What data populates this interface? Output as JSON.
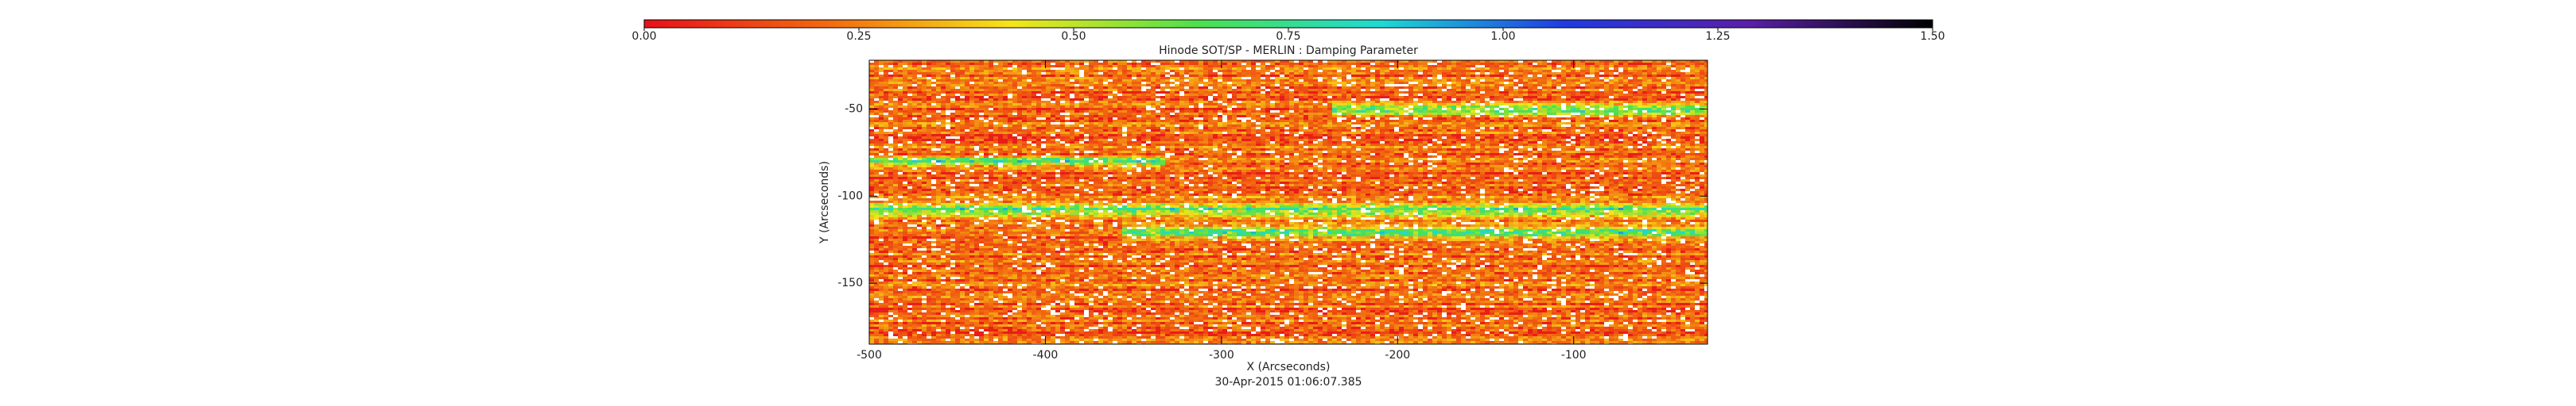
{
  "chart_data": {
    "type": "image",
    "title": "Hinode SOT/SP - MERLIN : Damping Parameter",
    "subtitle": "30-Apr-2015 01:06:07.385",
    "xlabel": "X (Arcseconds)",
    "ylabel": "Y (Arcseconds)",
    "xlim": [
      -500,
      -24
    ],
    "xticks": [
      -500,
      -400,
      -300,
      -200,
      -100
    ],
    "ylim": [
      -185,
      -22
    ],
    "yticks": [
      -50,
      -100,
      -150
    ],
    "colorbar": {
      "lim": [
        0,
        1.5
      ],
      "ticks": [
        {
          "value": 0,
          "label": "0.00"
        },
        {
          "value": 0.25,
          "label": "0.25"
        },
        {
          "value": 0.5,
          "label": "0.50"
        },
        {
          "value": 0.75,
          "label": "0.75"
        },
        {
          "value": 1,
          "label": "1.00"
        },
        {
          "value": 1.25,
          "label": "1.25"
        },
        {
          "value": 1.5,
          "label": "1.50"
        }
      ],
      "colors": [
        "#e8101a",
        "#f26a10",
        "#f6e51a",
        "#4fe04c",
        "#1fd9d4",
        "#1f3be0",
        "#5a1fa8",
        "#000000"
      ]
    }
  }
}
